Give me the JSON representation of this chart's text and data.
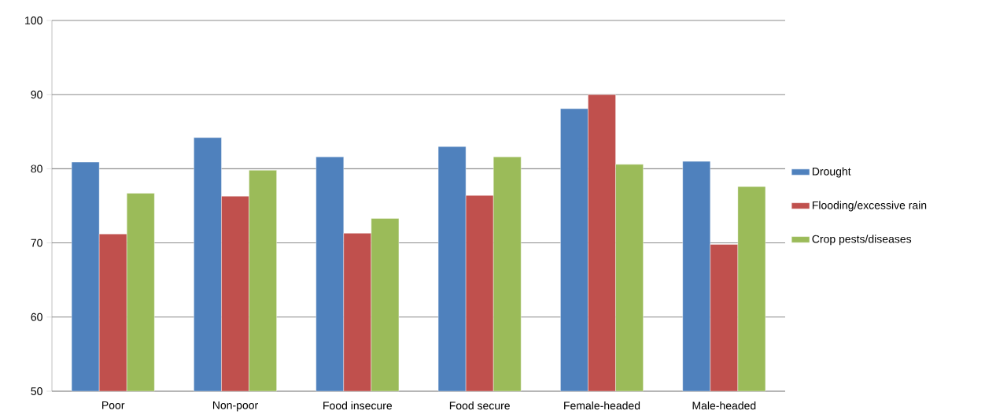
{
  "chart_data": {
    "type": "bar",
    "categories": [
      "Poor",
      "Non-poor",
      "Food insecure",
      "Food secure",
      "Female-headed",
      "Male-headed"
    ],
    "series": [
      {
        "name": "Drought",
        "color": "#4f81bd",
        "values": [
          80.9,
          84.2,
          81.6,
          83.0,
          88.1,
          81.0
        ]
      },
      {
        "name": "Flooding/excessive rain",
        "color": "#c0504d",
        "values": [
          71.2,
          76.3,
          71.3,
          76.4,
          90.0,
          69.8
        ]
      },
      {
        "name": "Crop pests/diseases",
        "color": "#9bbb59",
        "values": [
          76.7,
          79.8,
          73.3,
          81.6,
          80.6,
          77.6
        ]
      }
    ],
    "ylim": [
      50,
      100
    ],
    "yticks": [
      50,
      60,
      70,
      80,
      90,
      100
    ],
    "grid": "y",
    "legend": "right"
  }
}
